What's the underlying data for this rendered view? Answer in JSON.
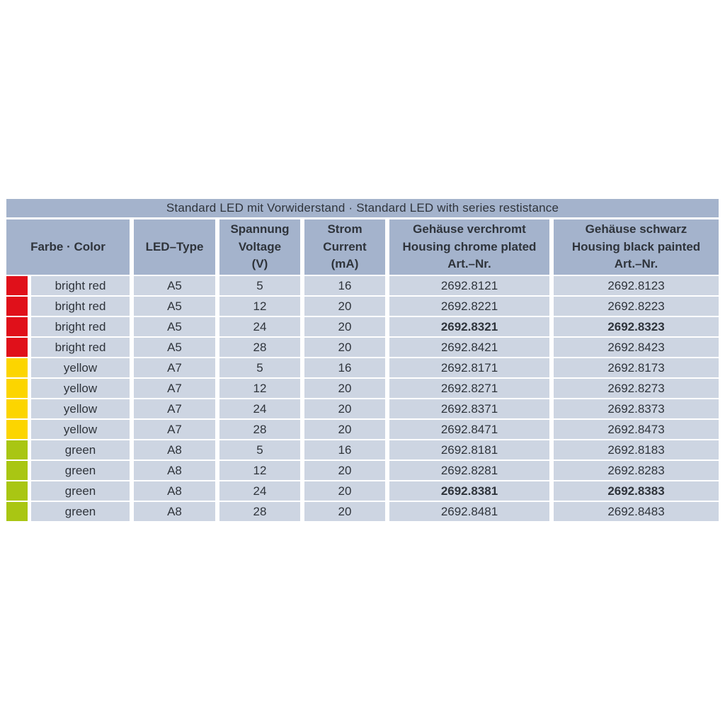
{
  "title": "Standard LED mit Vorwiderstand · Standard LED with series restistance",
  "columns": {
    "color": "Farbe · Color",
    "led_type": "LED–Type",
    "voltage": "Spannung\nVoltage\n(V)",
    "current": "Strom\nCurrent\n(mA)",
    "chrome": "Gehäuse verchromt\nHousing chrome plated\nArt.–Nr.",
    "black": "Gehäuse schwarz\nHousing black painted\nArt.–Nr."
  },
  "colors": {
    "header_bg": "#a4b3cc",
    "row_bg": "#cdd5e2",
    "text": "#2f343b",
    "swatch_red": "#e0101a",
    "swatch_yellow": "#fcd500",
    "swatch_green": "#a9c613"
  },
  "rows": [
    {
      "swatch": "#e0101a",
      "swatch_name": "red-swatch",
      "color": "bright red",
      "type": "A5",
      "voltage": "5",
      "current": "16",
      "chrome": "2692.8121",
      "black": "2692.8123",
      "bold": false
    },
    {
      "swatch": "#e0101a",
      "swatch_name": "red-swatch",
      "color": "bright red",
      "type": "A5",
      "voltage": "12",
      "current": "20",
      "chrome": "2692.8221",
      "black": "2692.8223",
      "bold": false
    },
    {
      "swatch": "#e0101a",
      "swatch_name": "red-swatch",
      "color": "bright red",
      "type": "A5",
      "voltage": "24",
      "current": "20",
      "chrome": "2692.8321",
      "black": "2692.8323",
      "bold": true
    },
    {
      "swatch": "#e0101a",
      "swatch_name": "red-swatch",
      "color": "bright red",
      "type": "A5",
      "voltage": "28",
      "current": "20",
      "chrome": "2692.8421",
      "black": "2692.8423",
      "bold": false
    },
    {
      "swatch": "#fcd500",
      "swatch_name": "yellow-swatch",
      "color": "yellow",
      "type": "A7",
      "voltage": "5",
      "current": "16",
      "chrome": "2692.8171",
      "black": "2692.8173",
      "bold": false
    },
    {
      "swatch": "#fcd500",
      "swatch_name": "yellow-swatch",
      "color": "yellow",
      "type": "A7",
      "voltage": "12",
      "current": "20",
      "chrome": "2692.8271",
      "black": "2692.8273",
      "bold": false
    },
    {
      "swatch": "#fcd500",
      "swatch_name": "yellow-swatch",
      "color": "yellow",
      "type": "A7",
      "voltage": "24",
      "current": "20",
      "chrome": "2692.8371",
      "black": "2692.8373",
      "bold": false
    },
    {
      "swatch": "#fcd500",
      "swatch_name": "yellow-swatch",
      "color": "yellow",
      "type": "A7",
      "voltage": "28",
      "current": "20",
      "chrome": "2692.8471",
      "black": "2692.8473",
      "bold": false
    },
    {
      "swatch": "#a9c613",
      "swatch_name": "green-swatch",
      "color": "green",
      "type": "A8",
      "voltage": "5",
      "current": "16",
      "chrome": "2692.8181",
      "black": "2692.8183",
      "bold": false
    },
    {
      "swatch": "#a9c613",
      "swatch_name": "green-swatch",
      "color": "green",
      "type": "A8",
      "voltage": "12",
      "current": "20",
      "chrome": "2692.8281",
      "black": "2692.8283",
      "bold": false
    },
    {
      "swatch": "#a9c613",
      "swatch_name": "green-swatch",
      "color": "green",
      "type": "A8",
      "voltage": "24",
      "current": "20",
      "chrome": "2692.8381",
      "black": "2692.8383",
      "bold": true
    },
    {
      "swatch": "#a9c613",
      "swatch_name": "green-swatch",
      "color": "green",
      "type": "A8",
      "voltage": "28",
      "current": "20",
      "chrome": "2692.8481",
      "black": "2692.8483",
      "bold": false
    }
  ]
}
